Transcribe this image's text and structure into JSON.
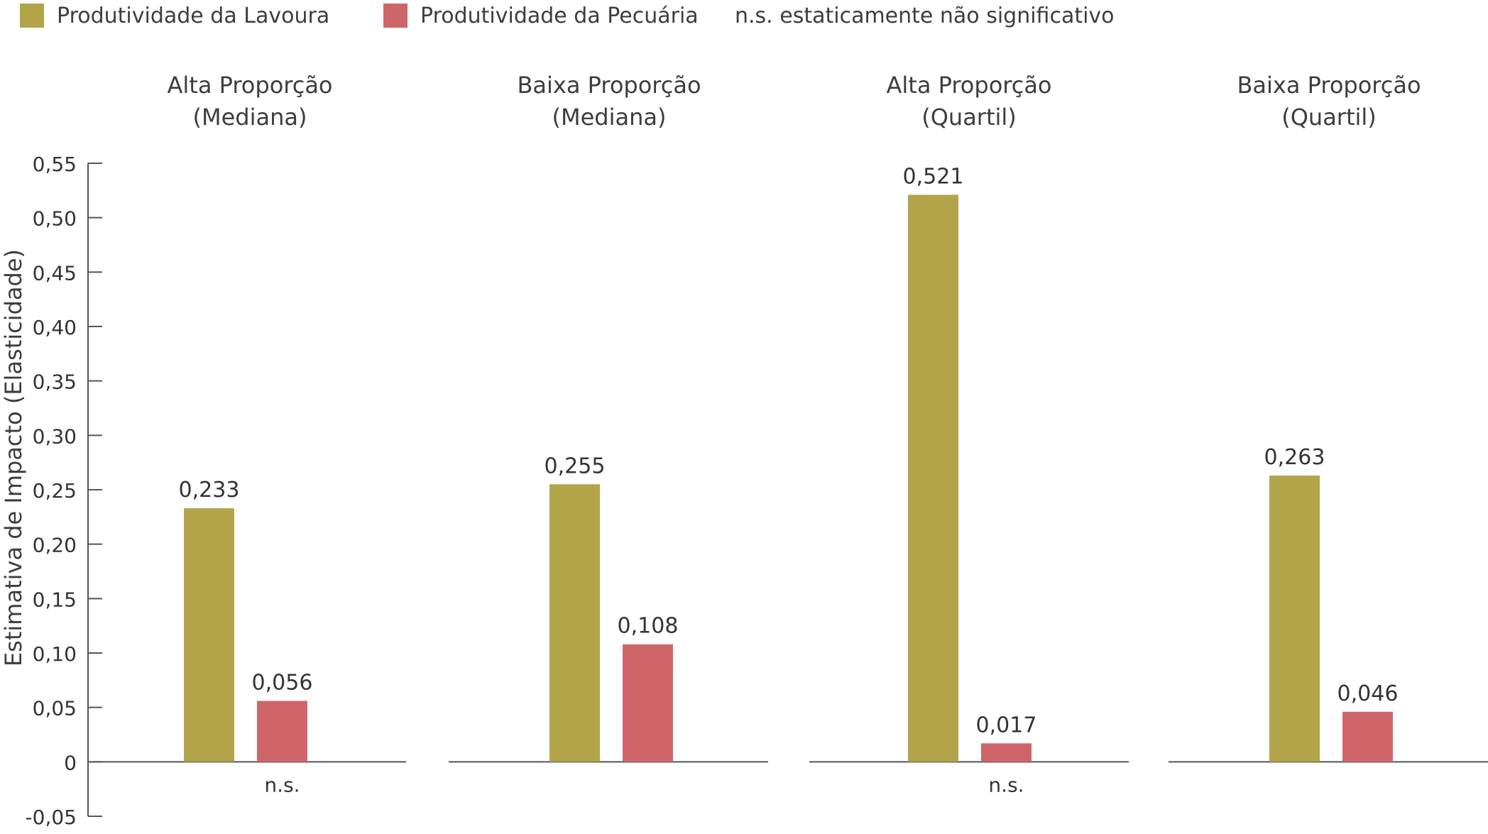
{
  "legend": {
    "crop": "Produtividade da Lavoura",
    "livestock": "Produtividade da Pecuária",
    "ns_note": "n.s. estaticamente não significativo"
  },
  "colors": {
    "crop": "#b3a44a",
    "livestock": "#cf6569",
    "axis": "#555555"
  },
  "chart_data": {
    "type": "bar",
    "ylabel": "Estimativa de Impacto (Elasticidade)",
    "ylim": [
      -0.05,
      0.55
    ],
    "yticks": [
      -0.05,
      0,
      0.05,
      0.1,
      0.15,
      0.2,
      0.25,
      0.3,
      0.35,
      0.4,
      0.45,
      0.5,
      0.55
    ],
    "ytick_labels": [
      "-0,05",
      "0",
      "0,05",
      "0,10",
      "0,15",
      "0,20",
      "0,25",
      "0,30",
      "0,35",
      "0,40",
      "0,45",
      "0,50",
      "0,55"
    ],
    "series": [
      {
        "name": "Produtividade da Lavoura",
        "key": "crop"
      },
      {
        "name": "Produtividade da Pecuária",
        "key": "livestock"
      }
    ],
    "panels": [
      {
        "title_line1": "Alta Proporção",
        "title_line2": "(Mediana)",
        "crop": 0.233,
        "crop_label": "0,233",
        "livestock": 0.056,
        "livestock_label": "0,056",
        "ns": "n.s."
      },
      {
        "title_line1": "Baixa Proporção",
        "title_line2": "(Mediana)",
        "crop": 0.255,
        "crop_label": "0,255",
        "livestock": 0.108,
        "livestock_label": "0,108",
        "ns": ""
      },
      {
        "title_line1": "Alta Proporção",
        "title_line2": "(Quartil)",
        "crop": 0.521,
        "crop_label": "0,521",
        "livestock": 0.017,
        "livestock_label": "0,017",
        "ns": "n.s."
      },
      {
        "title_line1": "Baixa Proporção",
        "title_line2": "(Quartil)",
        "crop": 0.263,
        "crop_label": "0,263",
        "livestock": 0.046,
        "livestock_label": "0,046",
        "ns": ""
      }
    ]
  }
}
